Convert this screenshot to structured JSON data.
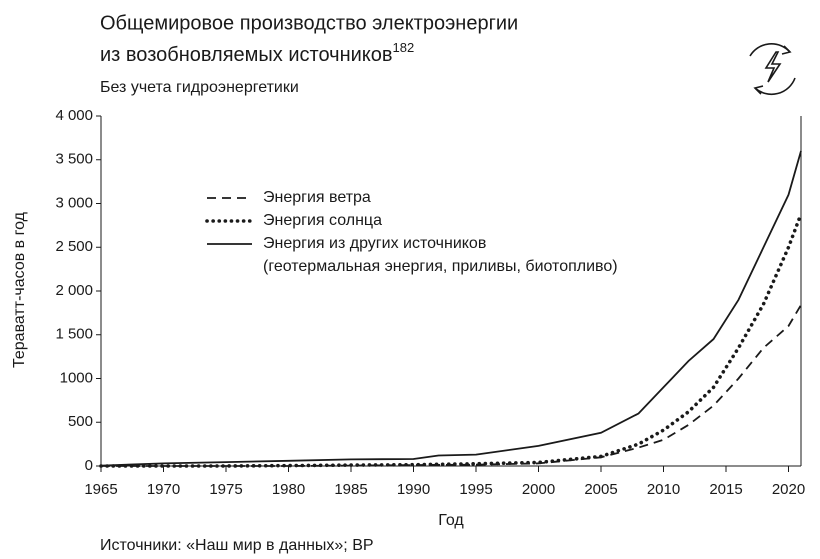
{
  "chart_data": {
    "type": "line",
    "title_lines": [
      "Общемировое производство электроэнергии",
      "из возобновляемых источников"
    ],
    "title_note": "182",
    "subtitle": "Без учета гидроэнергетики",
    "x_label": "Год",
    "y_label": "Тераватт-часов в год",
    "source": "Источники: «Наш мир в данных»; BP",
    "x": [
      1965,
      1970,
      1975,
      1980,
      1985,
      1990,
      1992,
      1995,
      2000,
      2005,
      2008,
      2010,
      2012,
      2014,
      2016,
      2018,
      2020,
      2021
    ],
    "series": [
      {
        "name": "Энергия ветра",
        "color": "#1a1a1a",
        "dash": "dashed",
        "values": [
          0,
          0,
          0,
          0,
          5,
          10,
          12,
          15,
          30,
          100,
          210,
          300,
          470,
          690,
          1000,
          1350,
          1600,
          1840
        ]
      },
      {
        "name": "Энергия солнца",
        "color": "#1a1a1a",
        "dash": "dotted",
        "values": [
          0,
          0,
          0,
          5,
          10,
          15,
          20,
          25,
          40,
          110,
          250,
          410,
          620,
          900,
          1350,
          1850,
          2500,
          2880
        ]
      },
      {
        "name": "Энергия из других источников",
        "name_note": "(геотермальная энергия, приливы, биотопливо)",
        "color": "#1a1a1a",
        "dash": "solid",
        "values": [
          5,
          30,
          45,
          60,
          75,
          80,
          120,
          130,
          230,
          380,
          600,
          900,
          1200,
          1450,
          1900,
          2500,
          3100,
          3600
        ]
      }
    ],
    "xlim": [
      1965,
      2021
    ],
    "xticks": [
      1965,
      1970,
      1975,
      1980,
      1985,
      1990,
      1995,
      2000,
      2005,
      2010,
      2015,
      2020
    ],
    "ylim": [
      0,
      4000
    ],
    "yticks": [
      0,
      500,
      1000,
      {
        "value": 1500,
        "label": "1 500"
      },
      {
        "value": 2000,
        "label": "2 000"
      },
      {
        "value": 2500,
        "label": "2 500"
      },
      {
        "value": 3000,
        "label": "3 000"
      },
      {
        "value": 3500,
        "label": "3 500"
      },
      {
        "value": 4000,
        "label": "4 000"
      }
    ],
    "grid": false
  }
}
